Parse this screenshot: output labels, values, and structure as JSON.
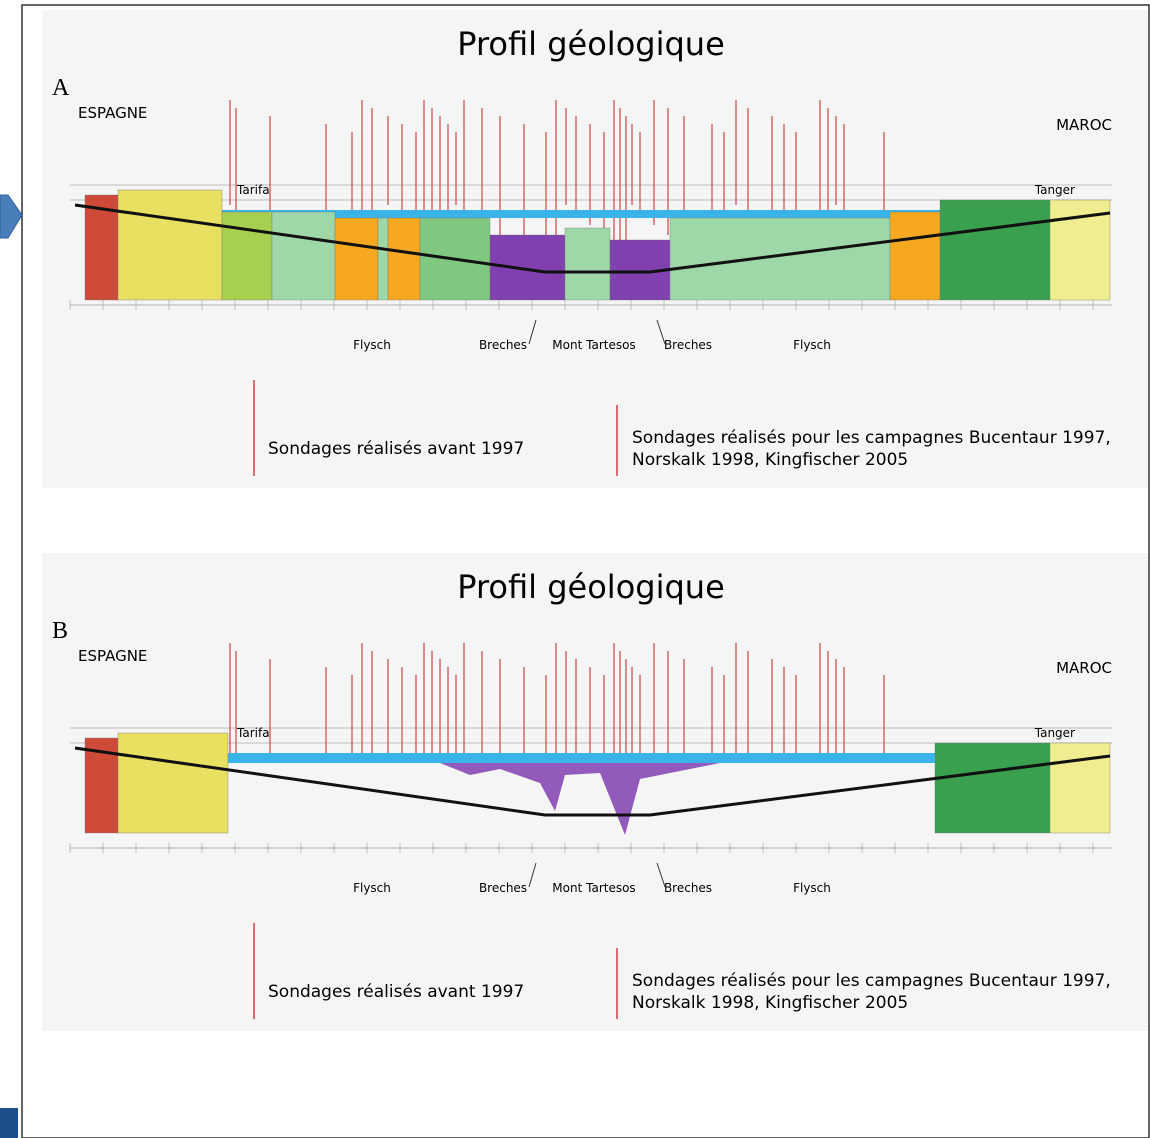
{
  "panels": [
    {
      "label": "A",
      "title": "Profil géologique",
      "left": "ESPAGNE",
      "right": "MAROC",
      "town_left": "Tarifa",
      "town_right": "Tanger",
      "annotations": [
        "Flysch",
        "Breches",
        "Mont Tartesos",
        "Breches",
        "Flysch"
      ],
      "legend": [
        {
          "lines": [
            "Sondages réalisés avant 1997"
          ]
        },
        {
          "lines": [
            "Sondages réalisés pour les campagnes Bucentaur 1997,",
            "Norskalk 1998, Kingfischer 2005"
          ]
        }
      ]
    },
    {
      "label": "B",
      "title": "Profil géologique",
      "left": "ESPAGNE",
      "right": "MAROC",
      "town_left": "Tarifa",
      "town_right": "Tanger",
      "annotations": [
        "Flysch",
        "Breches",
        "Mont Tartesos",
        "Breches",
        "Flysch"
      ],
      "legend": [
        {
          "lines": [
            "Sondages réalisés avant 1997"
          ]
        },
        {
          "lines": [
            "Sondages réalisés pour les campagnes Bucentaur 1997,",
            "Norskalk 1998, Kingfischer 2005"
          ]
        }
      ]
    }
  ]
}
